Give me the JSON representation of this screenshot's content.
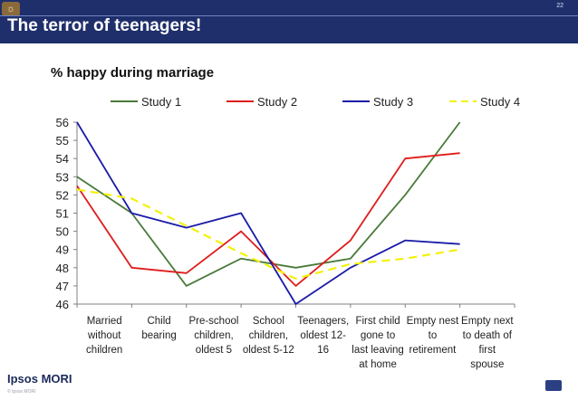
{
  "slide": {
    "title": "The terror of teenagers!",
    "page_number": "22",
    "brand": "Ipsos MORI",
    "copyright": "© Ipsos MORI",
    "logo_icon": "ipsos-emblem-icon"
  },
  "chart_data": {
    "type": "line",
    "title": "% happy during marriage",
    "xlabel": "",
    "ylabel": "",
    "ylim": [
      46,
      56
    ],
    "yticks": [
      "46",
      "47",
      "48",
      "49",
      "50",
      "51",
      "52",
      "53",
      "54",
      "55",
      "56"
    ],
    "grid": false,
    "legend": "top",
    "categories": [
      [
        "Married",
        "without",
        "children"
      ],
      [
        "Child",
        "bearing"
      ],
      [
        "Pre-school",
        "children,",
        "oldest 5"
      ],
      [
        "School",
        "children,",
        "oldest 5-12"
      ],
      [
        "Teenagers,",
        "oldest 12-",
        "16"
      ],
      [
        "First child",
        "gone to",
        "last leaving",
        "at home"
      ],
      [
        "Empty nest",
        "to",
        "retirement"
      ],
      [
        "Empty next",
        "to death of",
        "first",
        "spouse"
      ]
    ],
    "series": [
      {
        "name": "Study 1",
        "color": "#4a7a3a",
        "dash": "solid",
        "values": [
          53,
          51,
          47,
          48.5,
          48,
          48.5,
          52,
          56
        ]
      },
      {
        "name": "Study 2",
        "color": "#e01b1b",
        "dash": "solid",
        "values": [
          52.5,
          48,
          47.7,
          50,
          47,
          49.5,
          54,
          54.3
        ]
      },
      {
        "name": "Study 3",
        "color": "#1a1aa8",
        "dash": "solid",
        "values": [
          56,
          51,
          50.2,
          51,
          46,
          48,
          49.5,
          49.3
        ]
      },
      {
        "name": "Study 4",
        "color": "#f2f20a",
        "dash": "dashed",
        "values": [
          52.3,
          51.8,
          50.3,
          48.8,
          47.4,
          48.2,
          48.5,
          49
        ]
      }
    ]
  }
}
